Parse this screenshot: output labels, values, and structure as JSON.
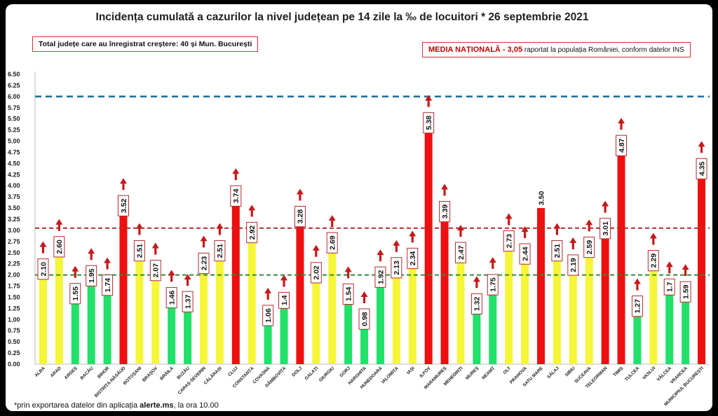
{
  "header": {
    "title": "Incidența cumulată a cazurilor la nivel județean pe 14 zile la ‰ de locuitori * 26 septembrie 2021"
  },
  "note_box": {
    "text": "Total județe care au înregistrat creștere:  40 și Mun. București"
  },
  "media_box": {
    "label": "MEDIA NAȚIONALĂ",
    "separator": "  - ",
    "value": "3,05",
    "text": " raportat la populația României, conform datelor INS"
  },
  "footnote": {
    "prefix": "*prin exportarea datelor din aplicația ",
    "app": "alerte.ms",
    "suffix": ", la ora 10.00"
  },
  "colors": {
    "green": "#22e06a",
    "yellow": "#f5f53a",
    "red": "#ee1010",
    "arrow": "#c41a1a",
    "blue_line": "#1f6f9a",
    "red_line": "#b52a2a",
    "green_line": "#2e8b3a"
  },
  "chart_data": {
    "type": "bar",
    "title": "Incidența cumulată a cazurilor la nivel județean pe 14 zile la ‰ de locuitori * 26 septembrie 2021",
    "ylim": [
      0,
      6.5
    ],
    "yticks": [
      "0.00",
      "0.25",
      "0.50",
      "0.75",
      "1.00",
      "1.25",
      "1.50",
      "1.75",
      "2.00",
      "2.25",
      "2.50",
      "2.75",
      "3.00",
      "3.25",
      "3.50",
      "3.75",
      "4.00",
      "4.25",
      "4.50",
      "4.75",
      "5.00",
      "5.25",
      "5.50",
      "5.75",
      "6.00",
      "6.25",
      "6.50"
    ],
    "reference_lines": [
      {
        "value": 6.0,
        "color": "blue"
      },
      {
        "value": 3.05,
        "color": "red"
      },
      {
        "value": 2.0,
        "color": "green"
      }
    ],
    "categories": [
      "ALBA",
      "ARAD",
      "ARGEȘ",
      "BACĂU",
      "BIHOR",
      "BISTRIȚA-NĂSĂUD",
      "BOTOȘANI",
      "BRAȘOV",
      "BRĂILA",
      "BUZĂU",
      "CARAȘ-SEVERIN",
      "CĂLĂRAȘI",
      "CLUJ",
      "CONSTANȚA",
      "COVASNA",
      "DÂMBOVIȚA",
      "DOLJ",
      "GALAȚI",
      "GIURGIU",
      "GORJ",
      "HARGHITA",
      "HUNEDOARA",
      "IALOMIȚA",
      "IAȘI",
      "ILFOV",
      "MARAMUREȘ",
      "MEHEDINȚI",
      "MUREȘ",
      "NEAMȚ",
      "OLT",
      "PRAHOVA",
      "SATU MARE",
      "SĂLAJ",
      "SIBIU",
      "SUCEAVA",
      "TELEORMAN",
      "TIMIȘ",
      "TULCEA",
      "VASLUI",
      "VÂLCEA",
      "VRANCEA",
      "MUNICIPIUL BUCUREȘTI"
    ],
    "values": [
      2.1,
      2.6,
      1.55,
      1.95,
      1.74,
      3.52,
      2.51,
      2.07,
      1.46,
      1.37,
      2.23,
      2.51,
      3.74,
      2.92,
      1.06,
      1.4,
      3.28,
      2.02,
      2.69,
      1.54,
      0.98,
      1.92,
      2.13,
      2.34,
      5.38,
      3.39,
      2.47,
      1.32,
      1.75,
      2.73,
      2.44,
      3.5,
      2.51,
      2.19,
      2.59,
      3.01,
      4.87,
      1.27,
      2.29,
      1.7,
      1.59,
      4.35
    ],
    "labels": [
      "2.10",
      "2.60",
      "1.55",
      "1.95",
      "1.74",
      "3.52",
      "2.51",
      "2.07",
      "1.46",
      "1.37",
      "2.23",
      "2.51",
      "3.74",
      "2.92",
      "1.06",
      "1.4",
      "3.28",
      "2.02",
      "2.69",
      "1.54",
      "0.98",
      "1.92",
      "2.13",
      "2.34",
      "5.38",
      "3.39",
      "2.47",
      "1.32",
      "1.75",
      "2.73",
      "2.44",
      "3.50",
      "2.51",
      "2.19",
      "2.59",
      "3.01",
      "4.87",
      "1.27",
      "2.29",
      "1.7",
      "1.59",
      "4.35"
    ],
    "bar_colors": [
      "yellow",
      "yellow",
      "green",
      "green",
      "green",
      "red",
      "yellow",
      "yellow",
      "green",
      "green",
      "yellow",
      "yellow",
      "red",
      "yellow",
      "green",
      "green",
      "red",
      "yellow",
      "yellow",
      "green",
      "green",
      "green",
      "yellow",
      "yellow",
      "red",
      "red",
      "yellow",
      "green",
      "green",
      "yellow",
      "yellow",
      "red",
      "yellow",
      "yellow",
      "yellow",
      "red",
      "red",
      "green",
      "yellow",
      "green",
      "green",
      "red"
    ],
    "arrow_up": [
      true,
      true,
      true,
      true,
      true,
      true,
      true,
      true,
      true,
      true,
      true,
      true,
      true,
      true,
      true,
      true,
      true,
      true,
      true,
      true,
      true,
      true,
      true,
      true,
      true,
      true,
      true,
      true,
      true,
      true,
      true,
      false,
      true,
      true,
      true,
      true,
      true,
      true,
      true,
      true,
      true,
      true
    ],
    "boxed_label": [
      true,
      true,
      true,
      true,
      true,
      true,
      true,
      true,
      true,
      true,
      true,
      true,
      true,
      true,
      true,
      true,
      true,
      true,
      true,
      true,
      true,
      true,
      true,
      true,
      true,
      true,
      true,
      true,
      true,
      true,
      true,
      false,
      true,
      true,
      true,
      true,
      true,
      true,
      true,
      true,
      true,
      true
    ]
  }
}
